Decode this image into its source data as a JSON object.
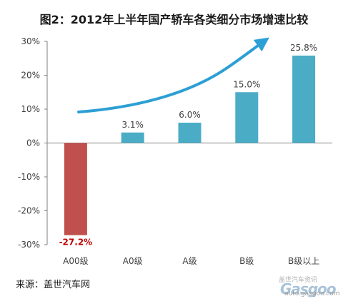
{
  "title": "图2：2012年上半年国产轿车各类细分市场增速比较",
  "source": "来源：盖世汽车网",
  "watermark": {
    "text": "盖世汽车资讯",
    "logo": "Gasgoo",
    "url": "auto.gasgoo.com"
  },
  "colors": {
    "bar_positive": "#4bacc6",
    "bar_negative": "#c0504d",
    "trend_arrow": "#2c9fd4",
    "negative_label": "#c00000"
  },
  "chart_data": {
    "type": "bar",
    "categories": [
      "A00级",
      "A0级",
      "A级",
      "B级",
      "B级以上"
    ],
    "values": [
      -27.2,
      3.1,
      6.0,
      15.0,
      25.8
    ],
    "data_labels": [
      "-27.2%",
      "3.1%",
      "6.0%",
      "15.0%",
      "25.8%"
    ],
    "ylim": [
      -30,
      30
    ],
    "yticks": [
      30,
      20,
      10,
      0,
      -10,
      -20,
      -30
    ],
    "ytick_labels": [
      "30%",
      "20%",
      "10%",
      "0%",
      "-10%",
      "-20%",
      "-30%"
    ],
    "xlabel": "",
    "ylabel": "",
    "grid": false,
    "legend": "none",
    "annotation": "rising trend arrow"
  }
}
